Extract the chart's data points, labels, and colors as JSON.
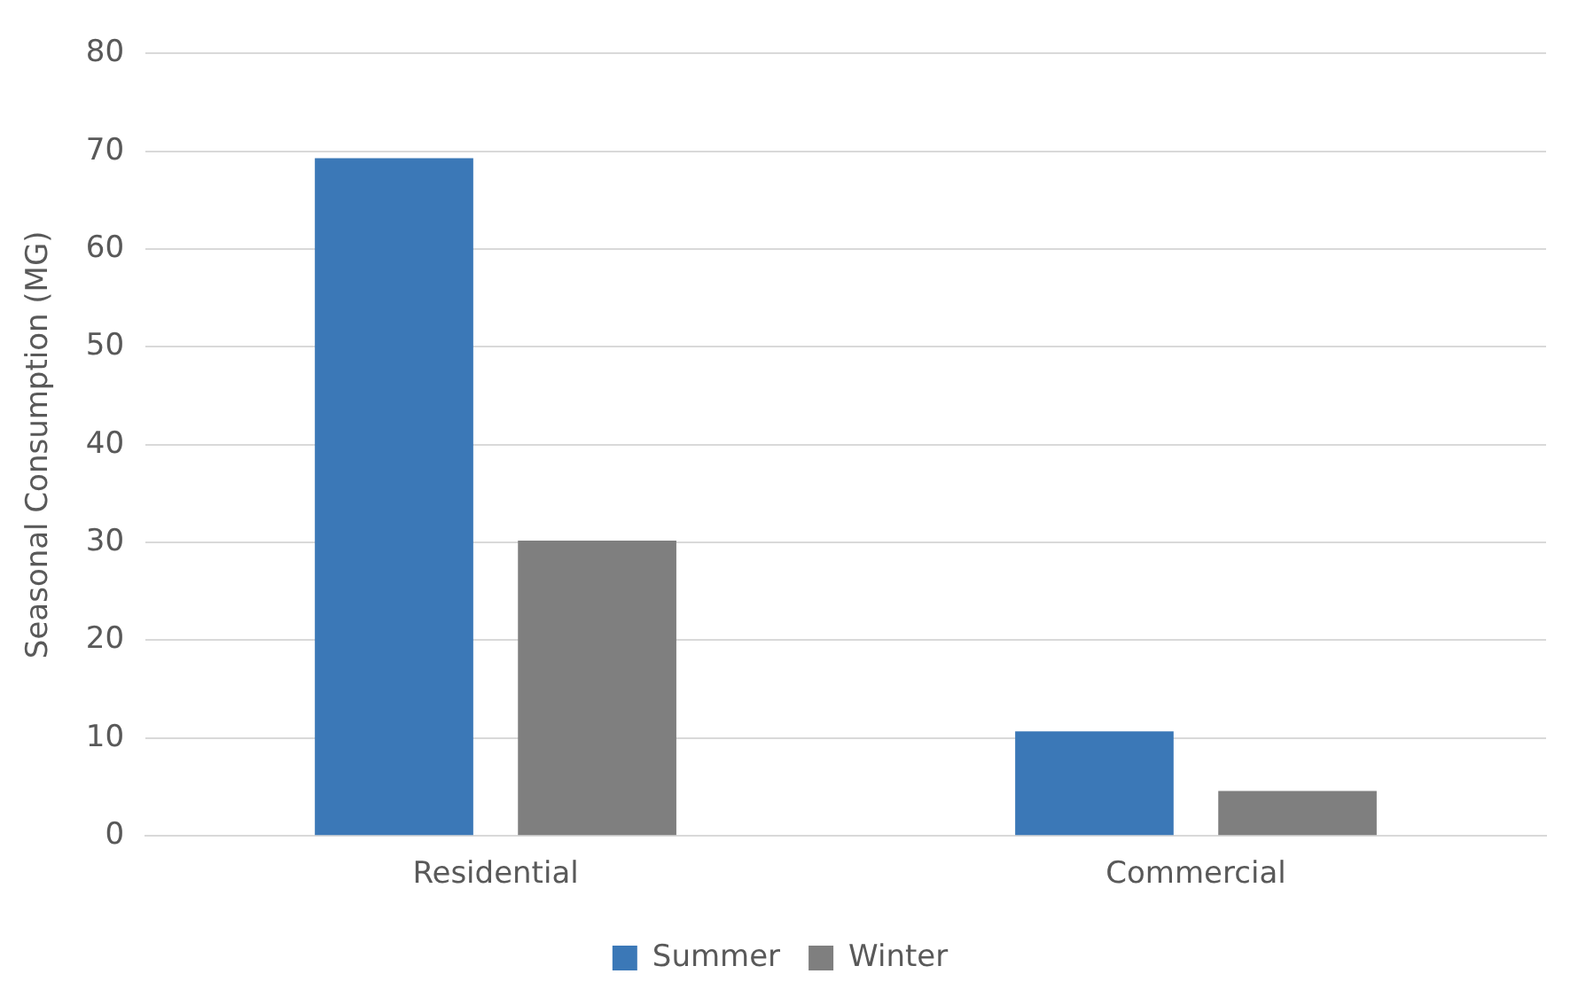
{
  "chart_data": {
    "type": "bar",
    "ylabel": "Seasonal Consumption (MG)",
    "categories": [
      "Residential",
      "Commercial"
    ],
    "series": [
      {
        "name": "Summer",
        "color": "#3b78b7",
        "values": [
          69.3,
          10.7
        ]
      },
      {
        "name": "Winter",
        "color": "#7f7f7f",
        "values": [
          30.2,
          4.6
        ]
      }
    ],
    "ylim": [
      0,
      80
    ],
    "yticks": [
      0,
      10,
      20,
      30,
      40,
      50,
      60,
      70,
      80
    ],
    "grid": "y",
    "legend": "bottom"
  }
}
